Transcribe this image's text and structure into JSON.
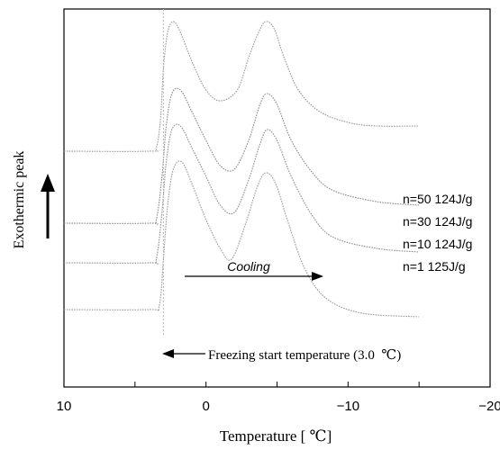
{
  "chart_data": {
    "type": "line",
    "xlabel": "Temperature [ ℃]",
    "ylabel": "Exothermic peak",
    "x_reversed": true,
    "xlim": [
      10,
      -20
    ],
    "xticks": [
      10,
      0,
      -10,
      -20
    ],
    "tick_labels": [
      "10",
      "0",
      "−10",
      "−20"
    ],
    "grid": false,
    "y_axis_ticks": false,
    "series": [
      {
        "name": "n=50 124J/g",
        "points": [
          [
            10,
            0.63
          ],
          [
            4,
            0.63
          ],
          [
            3.5,
            0.64
          ],
          [
            3.2,
            0.72
          ],
          [
            3.0,
            0.86
          ],
          [
            2.7,
            0.96
          ],
          [
            2.3,
            0.99
          ],
          [
            1.8,
            0.96
          ],
          [
            1.0,
            0.88
          ],
          [
            0,
            0.8
          ],
          [
            -1.0,
            0.77
          ],
          [
            -2.2,
            0.8
          ],
          [
            -3.0,
            0.89
          ],
          [
            -3.7,
            0.96
          ],
          [
            -4.2,
            0.99
          ],
          [
            -4.8,
            0.97
          ],
          [
            -5.5,
            0.89
          ],
          [
            -6.5,
            0.8
          ],
          [
            -8,
            0.74
          ],
          [
            -10,
            0.71
          ],
          [
            -12,
            0.7
          ],
          [
            -15,
            0.7
          ]
        ]
      },
      {
        "name": "n=30 124J/g",
        "points": [
          [
            10,
            0.43
          ],
          [
            4,
            0.43
          ],
          [
            3.5,
            0.44
          ],
          [
            3.1,
            0.56
          ],
          [
            2.8,
            0.7
          ],
          [
            2.4,
            0.79
          ],
          [
            1.8,
            0.8
          ],
          [
            1.0,
            0.74
          ],
          [
            0,
            0.66
          ],
          [
            -1.0,
            0.59
          ],
          [
            -2.0,
            0.58
          ],
          [
            -3.0,
            0.66
          ],
          [
            -3.8,
            0.76
          ],
          [
            -4.3,
            0.79
          ],
          [
            -5.0,
            0.76
          ],
          [
            -6.0,
            0.66
          ],
          [
            -7.5,
            0.57
          ],
          [
            -9,
            0.52
          ],
          [
            -12,
            0.49
          ],
          [
            -15,
            0.48
          ]
        ]
      },
      {
        "name": "n=10 124J/g",
        "points": [
          [
            10,
            0.32
          ],
          [
            4,
            0.32
          ],
          [
            3.5,
            0.33
          ],
          [
            3.1,
            0.46
          ],
          [
            2.8,
            0.6
          ],
          [
            2.4,
            0.69
          ],
          [
            1.8,
            0.7
          ],
          [
            1.0,
            0.64
          ],
          [
            0,
            0.56
          ],
          [
            -1.0,
            0.48
          ],
          [
            -2.0,
            0.46
          ],
          [
            -3.0,
            0.55
          ],
          [
            -3.8,
            0.65
          ],
          [
            -4.3,
            0.69
          ],
          [
            -5.0,
            0.66
          ],
          [
            -6.0,
            0.56
          ],
          [
            -7.5,
            0.45
          ],
          [
            -9,
            0.39
          ],
          [
            -12,
            0.36
          ],
          [
            -15,
            0.35
          ]
        ]
      },
      {
        "name": "n=1 125J/g",
        "points": [
          [
            10,
            0.19
          ],
          [
            4,
            0.19
          ],
          [
            3.3,
            0.2
          ],
          [
            3.0,
            0.33
          ],
          [
            2.7,
            0.48
          ],
          [
            2.3,
            0.58
          ],
          [
            1.7,
            0.6
          ],
          [
            1.0,
            0.54
          ],
          [
            0,
            0.44
          ],
          [
            -1.0,
            0.36
          ],
          [
            -1.8,
            0.33
          ],
          [
            -2.8,
            0.43
          ],
          [
            -3.6,
            0.53
          ],
          [
            -4.2,
            0.57
          ],
          [
            -4.9,
            0.54
          ],
          [
            -5.8,
            0.43
          ],
          [
            -7,
            0.3
          ],
          [
            -8.5,
            0.22
          ],
          [
            -11,
            0.18
          ],
          [
            -15,
            0.17
          ]
        ]
      }
    ],
    "annotations": {
      "cooling": "Cooling",
      "freezing": "Freezing start temperature (3.0  ℃)"
    },
    "freezing_start_x": 3.0
  }
}
